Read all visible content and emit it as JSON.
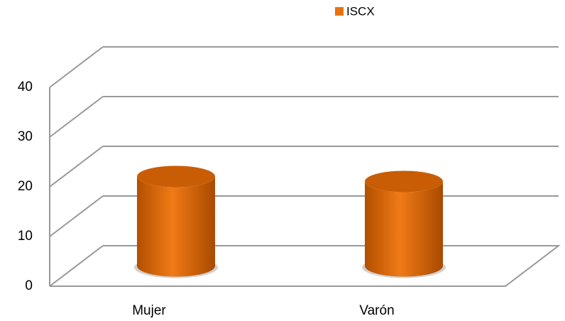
{
  "chart_data": {
    "type": "bar",
    "categories": [
      "Mujer",
      "Varón"
    ],
    "series": [
      {
        "name": "ISCX",
        "color": "#e8720c",
        "values": [
          18,
          17
        ]
      }
    ],
    "ylim": [
      0,
      40
    ],
    "yticks": [
      0,
      10,
      20,
      30,
      40
    ],
    "grid": true,
    "legend": "top"
  }
}
